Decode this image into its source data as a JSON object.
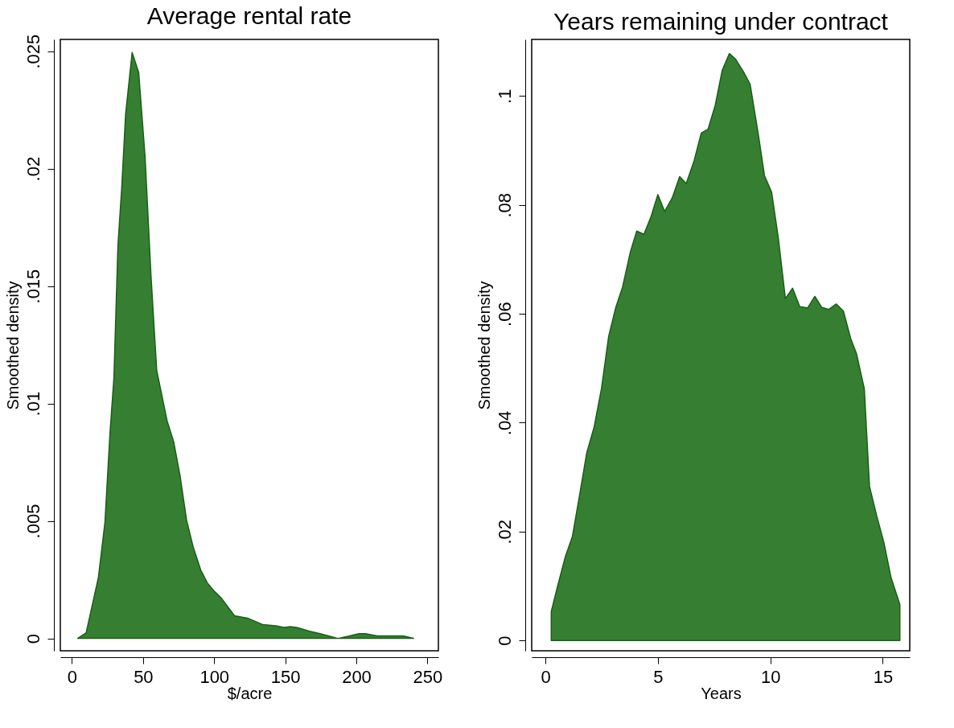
{
  "chart_data": [
    {
      "type": "area",
      "title": "Average rental rate",
      "xlabel": "$/acre",
      "ylabel": "Smoothed density",
      "color": "#367f32",
      "x": [
        4,
        10,
        18.6,
        23.2,
        26.8,
        29.5,
        32.3,
        35,
        37.7,
        42.3,
        46.9,
        51.4,
        55.6,
        59.6,
        61.8,
        66.9,
        71.5,
        76,
        80.6,
        85.2,
        90.6,
        95.2,
        99.7,
        105.2,
        114.3,
        123.5,
        134.4,
        143.5,
        149,
        153.5,
        158,
        167.2,
        174.5,
        180.9,
        186.4,
        188,
        201.9,
        206.4,
        214.6,
        223.7,
        232.9,
        240.2
      ],
      "values": [
        0,
        0.00024,
        0.0026,
        0.00495,
        0.0088,
        0.0111,
        0.0167,
        0.0192,
        0.0223,
        0.02494,
        0.0241,
        0.0205,
        0.0154,
        0.0114,
        0.01076,
        0.00926,
        0.00838,
        0.00692,
        0.00503,
        0.0039,
        0.0029,
        0.00236,
        0.00203,
        0.0017,
        0.00096,
        0.00086,
        0.00058,
        0.00053,
        0.00046,
        0.0005,
        0.00046,
        0.0003,
        0.0002,
        0.0001,
        0,
        0,
        0.0002,
        0.0002,
        0.0001,
        0.0001,
        0.0001,
        0
      ],
      "xlim": [
        -8.2,
        257.7
      ],
      "ylim": [
        -0.00053,
        0.0255
      ],
      "xticks": [
        0,
        50,
        100,
        150,
        200,
        250
      ],
      "yticks": [
        0,
        {
          "value": 0.005,
          "label": ".005"
        },
        {
          "value": 0.01,
          "label": ".01"
        },
        {
          "value": 0.015,
          "label": ".015"
        },
        {
          "value": 0.02,
          "label": ".02"
        },
        {
          "value": 0.025,
          "label": ".025"
        }
      ]
    },
    {
      "type": "area",
      "title": "Years remaining under contract",
      "xlabel": "Years",
      "ylabel": "Smoothed density",
      "color": "#367f32",
      "x": [
        0.26,
        0.26,
        0.55,
        0.88,
        1.2,
        1.52,
        1.84,
        2.16,
        2.49,
        2.81,
        3.13,
        3.43,
        3.78,
        4.06,
        4.38,
        4.7,
        5.0,
        5.3,
        5.64,
        5.97,
        6.26,
        6.61,
        6.93,
        7.23,
        7.55,
        7.86,
        8.18,
        8.45,
        8.8,
        9.1,
        9.45,
        9.74,
        10.06,
        10.35,
        10.67,
        10.99,
        11.31,
        11.66,
        11.98,
        12.28,
        12.6,
        12.93,
        13.25,
        13.57,
        13.83,
        14.18,
        14.41,
        14.73,
        15.05,
        15.37,
        15.76,
        15.76
      ],
      "values": [
        0,
        0.0053,
        0.0101,
        0.0153,
        0.0191,
        0.0267,
        0.0345,
        0.0391,
        0.0462,
        0.0558,
        0.0612,
        0.0649,
        0.0714,
        0.0752,
        0.0746,
        0.0779,
        0.0819,
        0.0788,
        0.0813,
        0.0852,
        0.0839,
        0.0881,
        0.0932,
        0.0939,
        0.0983,
        0.1047,
        0.1078,
        0.1068,
        0.1045,
        0.1022,
        0.0934,
        0.0854,
        0.0823,
        0.0741,
        0.0628,
        0.0647,
        0.0613,
        0.0611,
        0.0632,
        0.0612,
        0.0608,
        0.0618,
        0.0605,
        0.0555,
        0.0527,
        0.0462,
        0.0283,
        0.0229,
        0.018,
        0.0115,
        0.0066,
        0
      ],
      "xlim": [
        -0.61,
        16.2
      ],
      "ylim": [
        -0.0019,
        0.1104
      ],
      "xticks": [
        0,
        5,
        10,
        15
      ],
      "yticks": [
        0,
        {
          "value": 0.02,
          "label": ".02"
        },
        {
          "value": 0.04,
          "label": ".04"
        },
        {
          "value": 0.06,
          "label": ".06"
        },
        {
          "value": 0.08,
          "label": ".08"
        },
        {
          "value": 0.1,
          "label": ".1"
        }
      ]
    }
  ]
}
